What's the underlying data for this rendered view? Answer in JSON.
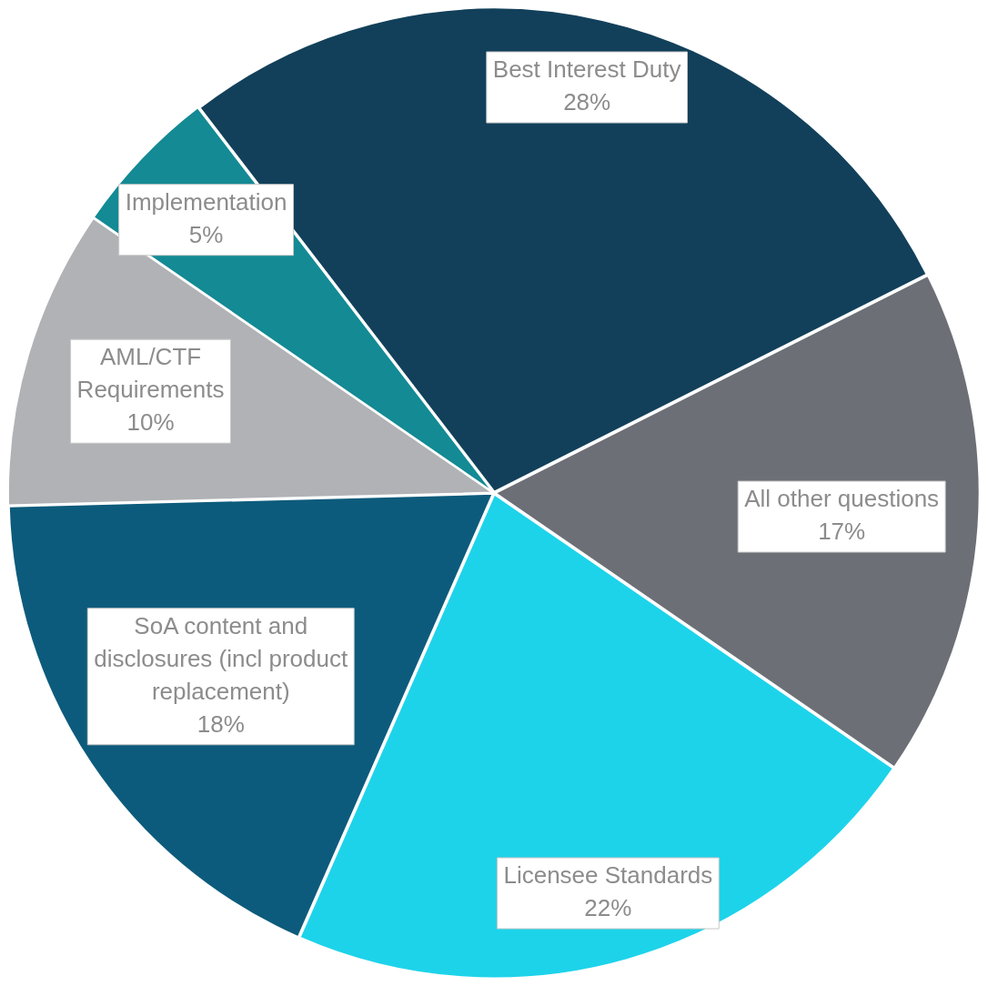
{
  "chart_data": {
    "type": "pie",
    "categories": [
      "Best Interest Duty",
      "All other questions",
      "Licensee Standards",
      "SoA content and disclosures (incl product replacement)",
      "AML/CTF Requirements",
      "Implementation"
    ],
    "values": [
      28,
      17,
      22,
      18,
      10,
      5
    ],
    "value_labels": [
      "28%",
      "17%",
      "22%",
      "18%",
      "10%",
      "5%"
    ],
    "colors": [
      "#12405a",
      "#6c6f76",
      "#1dd3ea",
      "#0d5b7c",
      "#b1b2b6",
      "#138a94"
    ],
    "legend": false
  }
}
